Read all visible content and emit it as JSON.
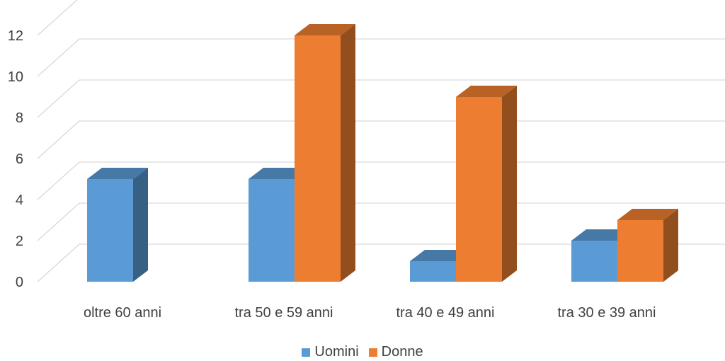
{
  "chart_data": {
    "type": "bar",
    "style": "3d-clustered-column",
    "categories": [
      "oltre 60 anni",
      "tra 50 e 59 anni",
      "tra 40 e 49 anni",
      "tra 30 e 39 anni"
    ],
    "series": [
      {
        "name": "Uomini",
        "values": [
          5,
          5,
          1,
          2
        ],
        "color": "#5B9BD5"
      },
      {
        "name": "Donne",
        "values": [
          0,
          12,
          9,
          3
        ],
        "color": "#ED7D31"
      }
    ],
    "title": "",
    "xlabel": "",
    "ylabel": "",
    "ylim": [
      0,
      12
    ],
    "yticks": [
      "0",
      "2",
      "4",
      "6",
      "8",
      "10",
      "12"
    ],
    "grid": true,
    "legend": "bottom"
  }
}
